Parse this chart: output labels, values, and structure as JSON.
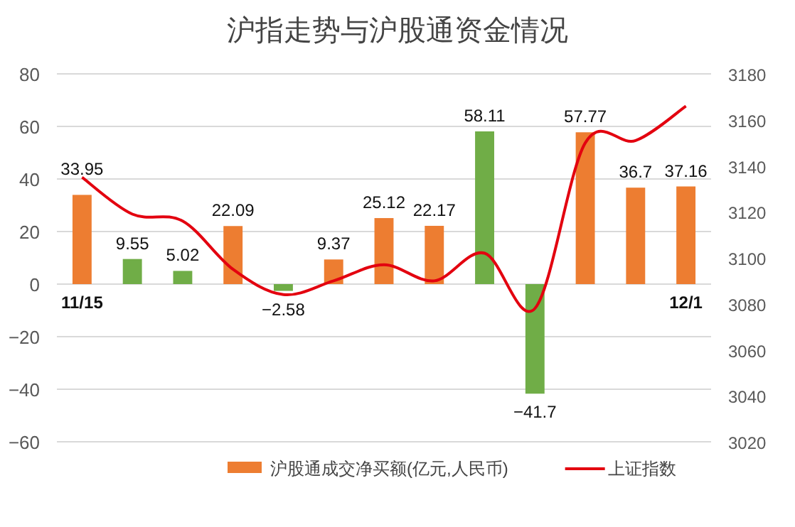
{
  "chart_data": {
    "type": "bar",
    "title": "沪指走势与沪股通资金情况",
    "categories": [
      "11/15",
      null,
      null,
      null,
      null,
      null,
      null,
      null,
      null,
      null,
      null,
      null,
      "12/1"
    ],
    "series": [
      {
        "name": "沪股通成交净买额(亿元,人民币)",
        "color": "#ed7d31",
        "colors": [
          "#ed7d31",
          "#70ad47",
          "#70ad47",
          "#ed7d31",
          "#70ad47",
          "#ed7d31",
          "#ed7d31",
          "#ed7d31",
          "#70ad47",
          "#70ad47",
          "#ed7d31",
          "#ed7d31",
          "#ed7d31"
        ],
        "values": [
          33.95,
          9.55,
          5.02,
          22.09,
          -2.58,
          9.37,
          25.12,
          22.17,
          58.11,
          -41.7,
          57.77,
          36.7,
          37.16
        ],
        "value_labels": [
          "33.95",
          "9.55",
          "5.02",
          "22.09",
          "−2.58",
          "9.37",
          "25.12",
          "22.17",
          "58.11",
          "−41.7",
          "57.77",
          "36.7",
          "37.16"
        ]
      },
      {
        "name": "上证指数",
        "type": "line",
        "axis": "y2",
        "color": "#e3000f",
        "values": [
          3135,
          3119,
          3116,
          3095,
          3084,
          3090,
          3097,
          3090,
          3102,
          3078,
          3150,
          3151,
          3166
        ]
      }
    ],
    "ylim": [
      -60,
      80
    ],
    "yticks": [
      -60,
      -40,
      -20,
      0,
      20,
      40,
      60,
      80
    ],
    "y2lim": [
      3020,
      3180
    ],
    "y2ticks": [
      3020,
      3040,
      3060,
      3080,
      3100,
      3120,
      3140,
      3160,
      3180
    ],
    "grid": "y",
    "legend": "bottom",
    "marker": "none",
    "line_style": "solid"
  }
}
